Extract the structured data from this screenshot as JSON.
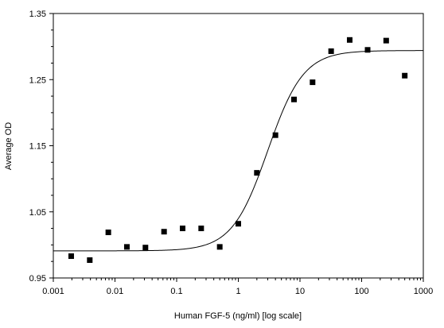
{
  "chart_data": {
    "type": "scatter",
    "title": "",
    "xlabel": "Human FGF-5 (ng/ml) [log scale]",
    "ylabel": "Average OD",
    "x_scale": "log",
    "xlim": [
      0.001,
      1000
    ],
    "ylim": [
      0.95,
      1.35
    ],
    "x_ticks": [
      {
        "value": 0.001,
        "label": "0.001"
      },
      {
        "value": 0.01,
        "label": "0.01"
      },
      {
        "value": 0.1,
        "label": "0.1"
      },
      {
        "value": 1,
        "label": "1"
      },
      {
        "value": 10,
        "label": "10"
      },
      {
        "value": 100,
        "label": "100"
      },
      {
        "value": 1000,
        "label": "1000"
      }
    ],
    "y_ticks": [
      {
        "value": 0.95,
        "label": "0.95"
      },
      {
        "value": 1.05,
        "label": "1.05"
      },
      {
        "value": 1.15,
        "label": "1.15"
      },
      {
        "value": 1.25,
        "label": "1.25"
      },
      {
        "value": 1.35,
        "label": "1.35"
      }
    ],
    "grid": false,
    "series": [
      {
        "type": "scatter",
        "points": [
          {
            "x": 0.00195,
            "y": 0.983
          },
          {
            "x": 0.0039,
            "y": 0.977
          },
          {
            "x": 0.0078,
            "y": 1.019
          },
          {
            "x": 0.0156,
            "y": 0.997
          },
          {
            "x": 0.0312,
            "y": 0.996
          },
          {
            "x": 0.0625,
            "y": 1.02
          },
          {
            "x": 0.125,
            "y": 1.025
          },
          {
            "x": 0.25,
            "y": 1.025
          },
          {
            "x": 0.5,
            "y": 0.997
          },
          {
            "x": 1,
            "y": 1.032
          },
          {
            "x": 2,
            "y": 1.109
          },
          {
            "x": 4,
            "y": 1.166
          },
          {
            "x": 8,
            "y": 1.22
          },
          {
            "x": 16,
            "y": 1.246
          },
          {
            "x": 32,
            "y": 1.293
          },
          {
            "x": 64,
            "y": 1.31
          },
          {
            "x": 125,
            "y": 1.295
          },
          {
            "x": 250,
            "y": 1.309
          },
          {
            "x": 500,
            "y": 1.256
          }
        ]
      },
      {
        "type": "line",
        "fit": "four-parameter logistic",
        "bottom": 0.991,
        "top": 1.294,
        "ec50": 3.0,
        "hill": 1.5
      }
    ]
  }
}
